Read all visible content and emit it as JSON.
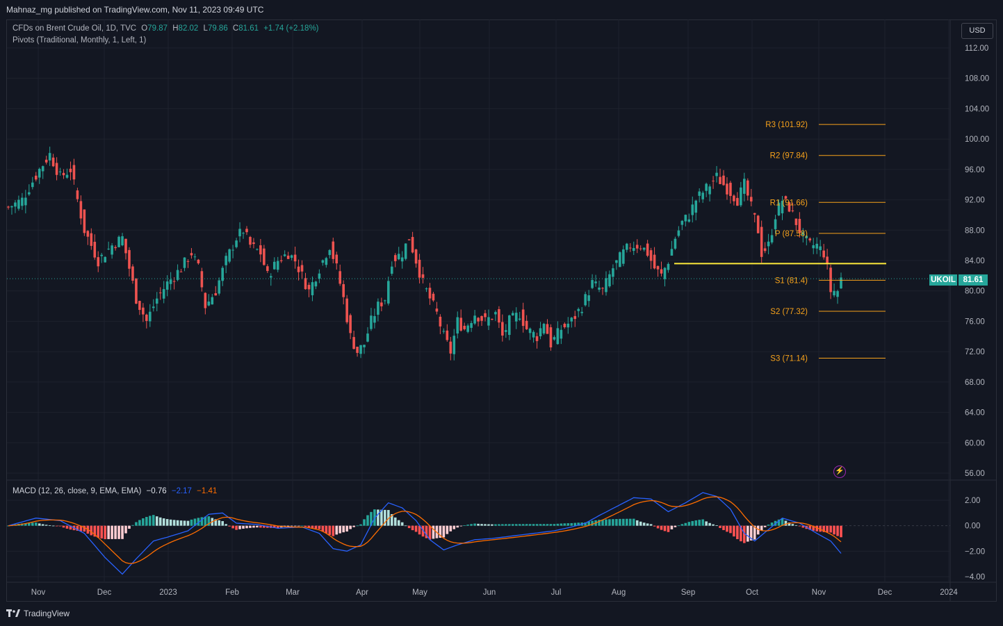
{
  "header": {
    "published_by": "Mahnaz_mg published on TradingView.com, Nov 11, 2023 09:49 UTC"
  },
  "legend": {
    "symbol_line": "CFDs on Brent Crude Oil, 1D, TVC",
    "o_label": "O",
    "o_value": "79.87",
    "h_label": "H",
    "h_value": "82.02",
    "l_label": "L",
    "l_value": "79.86",
    "c_label": "C",
    "c_value": "81.61",
    "change": "+1.74 (+2.18%)",
    "pivots_line": "Pivots (Traditional, Monthly, 1, Left, 1)"
  },
  "currency_button": "USD",
  "macd_legend": {
    "title": "MACD (12, 26, close, 9, EMA, EMA)",
    "hist": "−0.76",
    "macd": "−2.17",
    "signal": "−1.41"
  },
  "price_axis": [
    "112.00",
    "108.00",
    "104.00",
    "100.00",
    "96.00",
    "92.00",
    "88.00",
    "84.00",
    "80.00",
    "76.00",
    "72.00",
    "68.00",
    "64.00",
    "60.00",
    "56.00"
  ],
  "macd_axis": [
    "2.00",
    "0.00",
    "−2.00",
    "−4.00"
  ],
  "time_axis": [
    "Nov",
    "Dec",
    "2023",
    "Feb",
    "Mar",
    "Apr",
    "May",
    "Jun",
    "Jul",
    "Aug",
    "Sep",
    "Oct",
    "Nov",
    "Dec",
    "2024"
  ],
  "pivots": [
    {
      "label": "R3 (101.92)",
      "value": 101.92
    },
    {
      "label": "R2 (97.84)",
      "value": 97.84
    },
    {
      "label": "R1 (91.66)",
      "value": 91.66
    },
    {
      "label": "P (87.58)",
      "value": 87.58
    },
    {
      "label": "S1 (81.4)",
      "value": 81.4
    },
    {
      "label": "S2 (77.32)",
      "value": 77.32
    },
    {
      "label": "S3 (71.14)",
      "value": 71.14
    }
  ],
  "horizontal_line_value": 83.6,
  "last_price": {
    "symbol": "UKOIL",
    "value": "81.61",
    "numeric": 81.61
  },
  "footer": {
    "brand": "TradingView"
  },
  "colors": {
    "up": "#26a69a",
    "down": "#ef5350",
    "pivot": "#f7a21b",
    "hline": "#ffeb3b",
    "macd": "#2962ff",
    "signal": "#ff6d00",
    "background": "#131722",
    "grid": "#1e222d"
  },
  "chart_data": {
    "type": "candlestick",
    "price_range": [
      56,
      112
    ],
    "macd_range": [
      -4,
      2
    ],
    "anchors": [
      [
        0,
        91
      ],
      [
        4,
        92
      ],
      [
        9,
        96
      ],
      [
        12,
        98
      ],
      [
        15,
        95
      ],
      [
        18,
        96
      ],
      [
        22,
        88
      ],
      [
        26,
        84
      ],
      [
        30,
        86
      ],
      [
        33,
        87
      ],
      [
        37,
        79
      ],
      [
        40,
        76
      ],
      [
        43,
        79
      ],
      [
        46,
        81
      ],
      [
        50,
        83
      ],
      [
        53,
        85
      ],
      [
        55,
        83
      ],
      [
        57,
        78
      ],
      [
        60,
        80
      ],
      [
        63,
        84
      ],
      [
        66,
        87
      ],
      [
        68,
        88
      ],
      [
        70,
        86
      ],
      [
        73,
        85
      ],
      [
        75,
        82
      ],
      [
        78,
        84
      ],
      [
        81,
        85
      ],
      [
        83,
        84
      ],
      [
        85,
        82
      ],
      [
        87,
        80
      ],
      [
        90,
        83
      ],
      [
        93,
        86
      ],
      [
        95,
        83
      ],
      [
        97,
        79
      ],
      [
        99,
        74
      ],
      [
        101,
        72
      ],
      [
        103,
        73
      ],
      [
        105,
        76
      ],
      [
        107,
        78
      ],
      [
        109,
        79
      ],
      [
        111,
        84
      ],
      [
        114,
        85
      ],
      [
        116,
        87
      ],
      [
        118,
        84
      ],
      [
        120,
        81
      ],
      [
        122,
        79
      ],
      [
        124,
        77
      ],
      [
        126,
        74
      ],
      [
        128,
        72
      ],
      [
        130,
        76
      ],
      [
        132,
        75
      ],
      [
        135,
        77
      ],
      [
        138,
        76
      ],
      [
        141,
        77
      ],
      [
        143,
        74
      ],
      [
        145,
        76
      ],
      [
        148,
        77
      ],
      [
        150,
        75
      ],
      [
        153,
        74
      ],
      [
        155,
        76
      ],
      [
        157,
        73
      ],
      [
        160,
        75
      ],
      [
        163,
        76
      ],
      [
        166,
        78
      ],
      [
        169,
        81
      ],
      [
        172,
        80
      ],
      [
        175,
        83
      ],
      [
        178,
        85
      ],
      [
        180,
        86
      ],
      [
        183,
        86
      ],
      [
        185,
        85
      ],
      [
        187,
        83
      ],
      [
        189,
        82
      ],
      [
        191,
        84
      ],
      [
        193,
        87
      ],
      [
        195,
        89
      ],
      [
        197,
        90
      ],
      [
        199,
        92
      ],
      [
        201,
        93
      ],
      [
        203,
        94
      ],
      [
        205,
        95
      ],
      [
        207,
        94
      ],
      [
        209,
        93
      ],
      [
        211,
        92
      ],
      [
        213,
        94
      ],
      [
        215,
        91
      ],
      [
        217,
        88
      ],
      [
        218,
        85
      ],
      [
        220,
        86
      ],
      [
        222,
        90
      ],
      [
        224,
        92
      ],
      [
        226,
        91
      ],
      [
        228,
        89
      ],
      [
        230,
        87
      ],
      [
        232,
        86
      ],
      [
        234,
        86
      ],
      [
        236,
        85
      ],
      [
        237,
        83
      ],
      [
        238,
        80
      ],
      [
        240,
        80
      ],
      [
        241,
        81.61
      ]
    ],
    "macd_anchors": [
      [
        0,
        0
      ],
      [
        8,
        0.6
      ],
      [
        15,
        0.4
      ],
      [
        22,
        -0.6
      ],
      [
        28,
        -2.5
      ],
      [
        33,
        -3.8
      ],
      [
        37,
        -2.6
      ],
      [
        42,
        -1.2
      ],
      [
        46,
        -0.9
      ],
      [
        52,
        -0.4
      ],
      [
        58,
        0.9
      ],
      [
        62,
        1
      ],
      [
        66,
        0.2
      ],
      [
        72,
        0.1
      ],
      [
        78,
        -0.2
      ],
      [
        85,
        -0.1
      ],
      [
        90,
        -0.6
      ],
      [
        94,
        -1.8
      ],
      [
        98,
        -2
      ],
      [
        102,
        -1.5
      ],
      [
        106,
        0.6
      ],
      [
        110,
        1.8
      ],
      [
        114,
        1.4
      ],
      [
        118,
        0.4
      ],
      [
        122,
        -1.1
      ],
      [
        126,
        -1.9
      ],
      [
        130,
        -1.5
      ],
      [
        135,
        -1.1
      ],
      [
        140,
        -1
      ],
      [
        146,
        -0.8
      ],
      [
        152,
        -0.6
      ],
      [
        158,
        -0.4
      ],
      [
        163,
        -0.1
      ],
      [
        167,
        0.2
      ],
      [
        171,
        0.8
      ],
      [
        176,
        1.5
      ],
      [
        181,
        2.2
      ],
      [
        186,
        2.1
      ],
      [
        191,
        1.1
      ],
      [
        196,
        1.8
      ],
      [
        201,
        2.6
      ],
      [
        205,
        2.3
      ],
      [
        209,
        1.3
      ],
      [
        213,
        -0.6
      ],
      [
        216,
        -1.2
      ],
      [
        220,
        -0.3
      ],
      [
        224,
        0.6
      ],
      [
        229,
        0.2
      ],
      [
        234,
        -0.6
      ],
      [
        238,
        -1.2
      ],
      [
        241,
        -2.17
      ]
    ]
  }
}
